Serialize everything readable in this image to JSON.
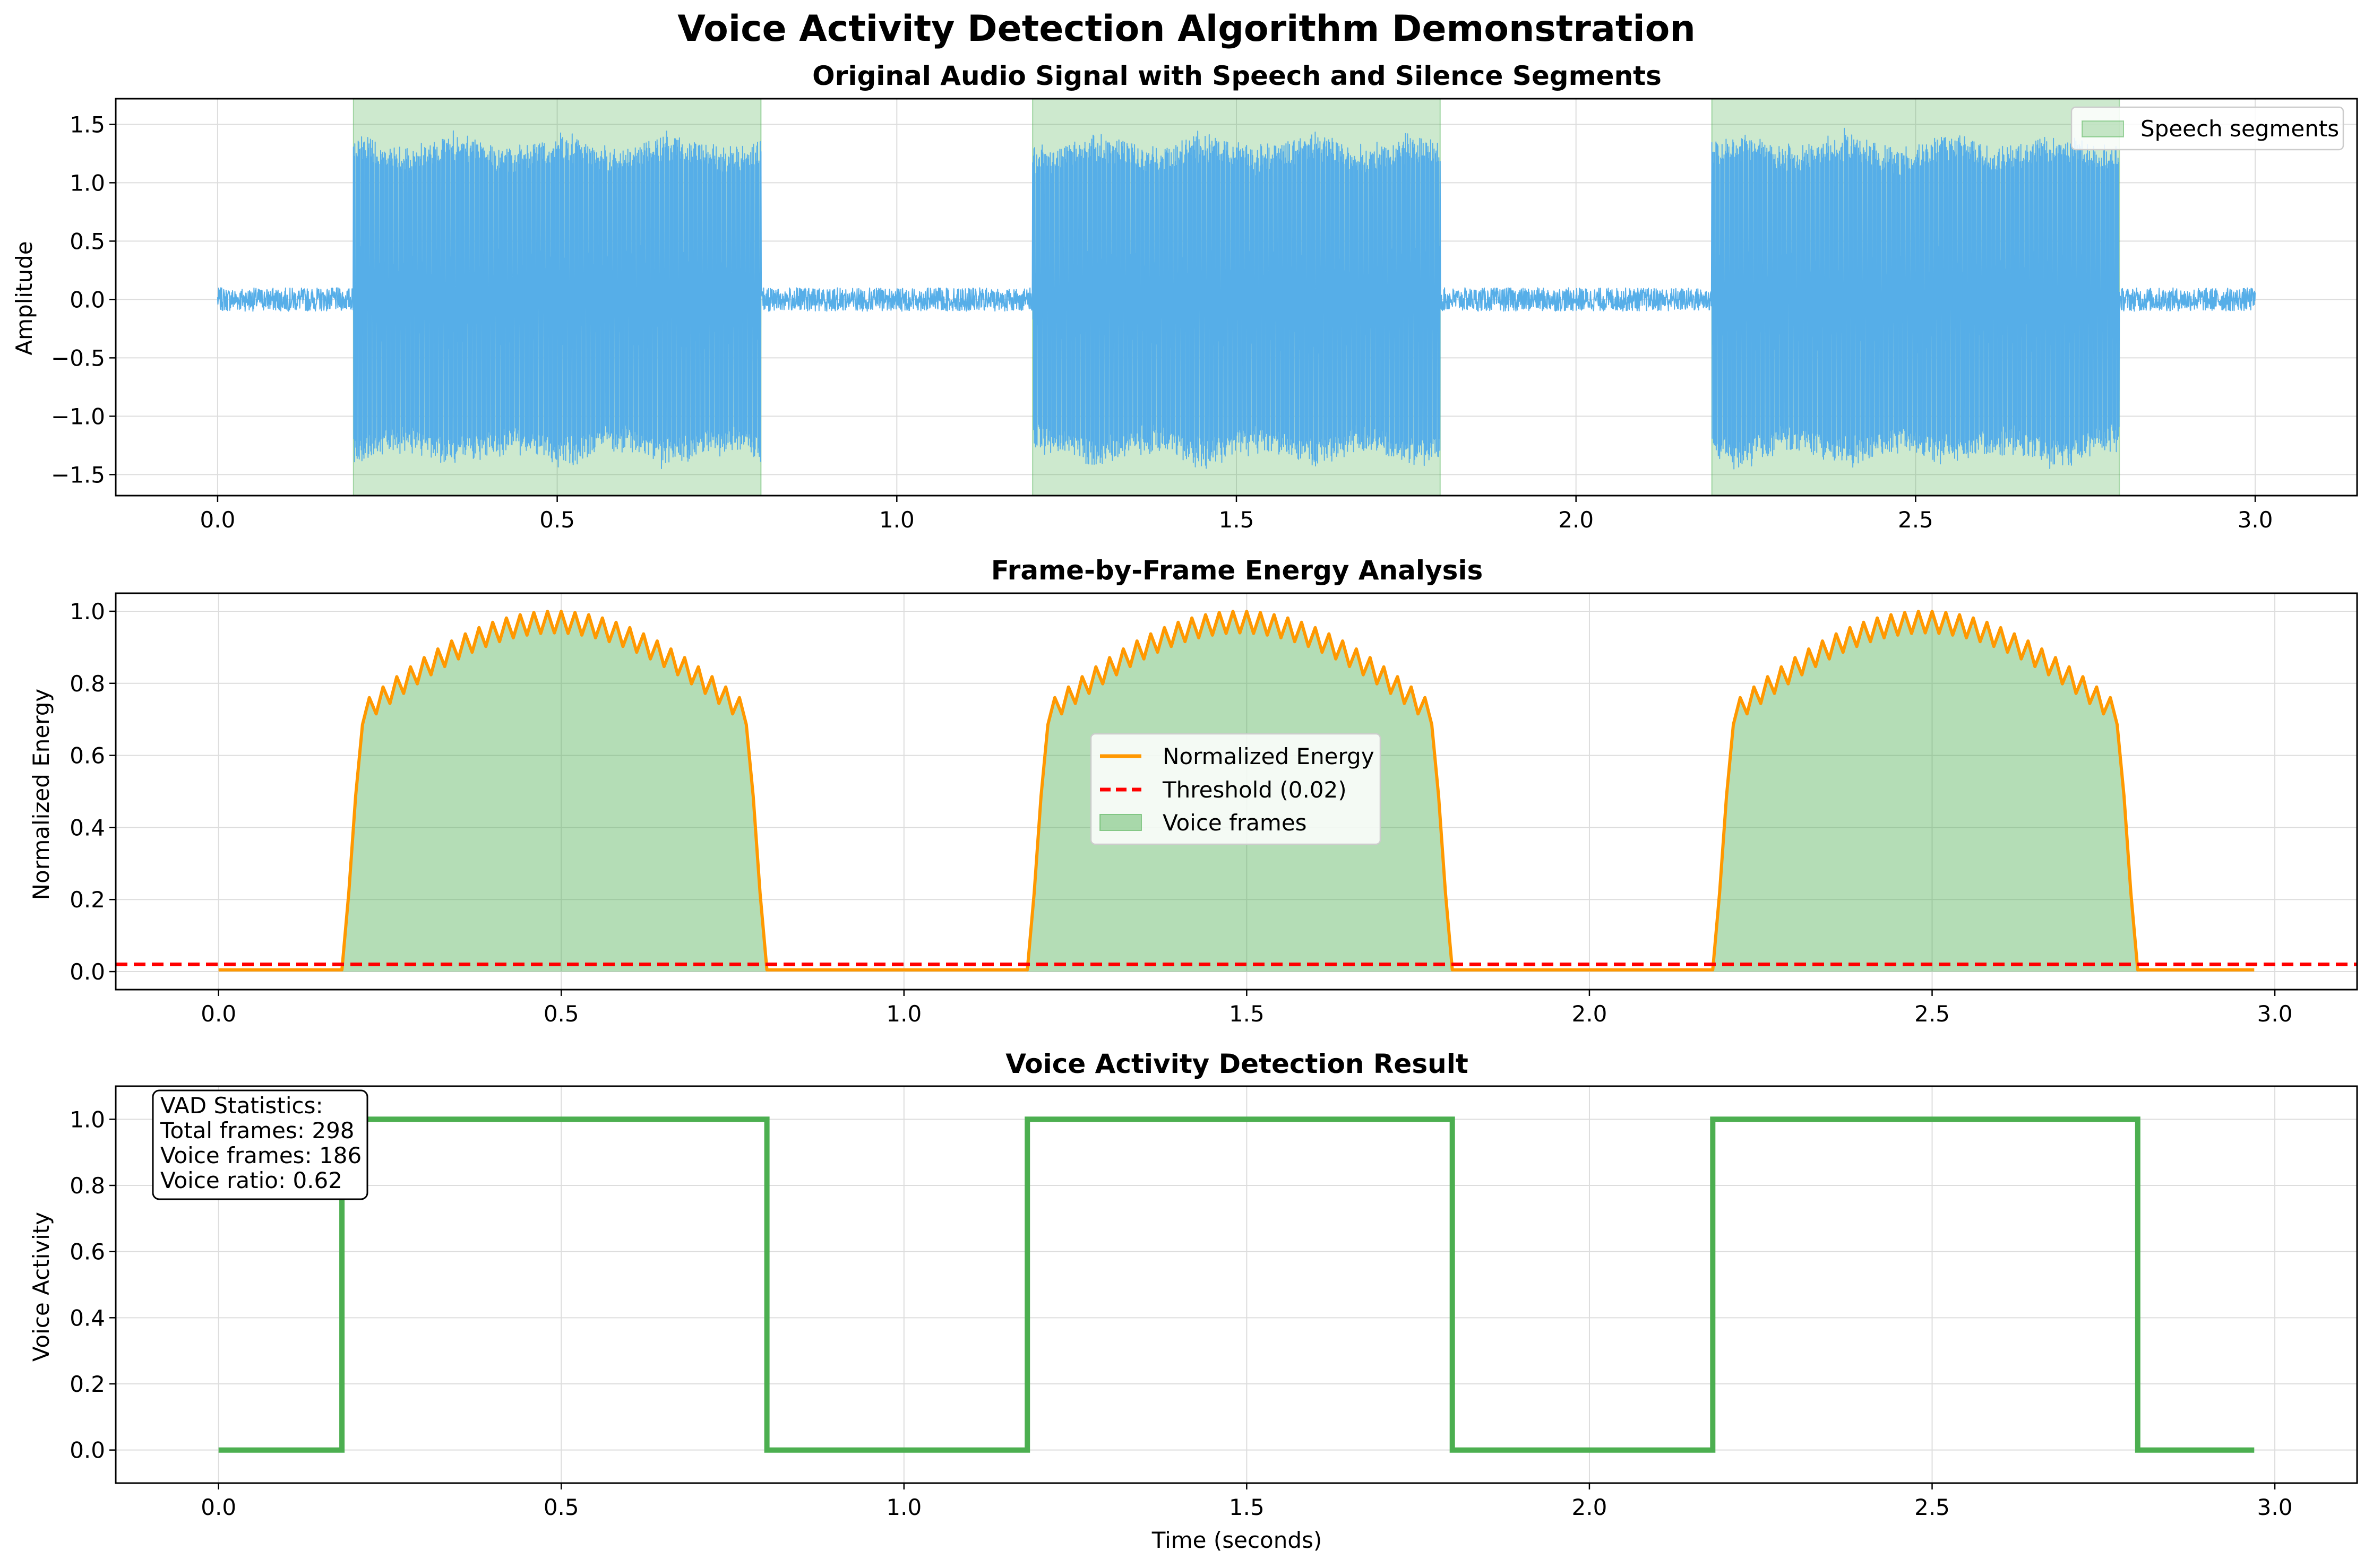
{
  "figure": {
    "title": "Voice Activity Detection Algorithm Demonstration"
  },
  "colors": {
    "signal": "#56aee8",
    "speech_fill": "#4caf50",
    "energy": "#ff9800",
    "threshold": "#ff0000",
    "vad": "#4caf50",
    "grid": "#dddddd"
  },
  "chart_data": [
    {
      "type": "line",
      "title": "Original Audio Signal with Speech and Silence Segments",
      "xlabel": "",
      "ylabel": "Amplitude",
      "xlim": [
        -0.15,
        3.15
      ],
      "ylim": [
        -1.68,
        1.72
      ],
      "xticks": [
        0.0,
        0.5,
        1.0,
        1.5,
        2.0,
        2.5,
        3.0
      ],
      "xtick_labels": [
        "0.0",
        "0.5",
        "1.0",
        "1.5",
        "2.0",
        "2.5",
        "3.0"
      ],
      "yticks": [
        -1.5,
        -1.0,
        -0.5,
        0.0,
        0.5,
        1.0,
        1.5
      ],
      "ytick_labels": [
        "−1.5",
        "−1.0",
        "−0.5",
        "0.0",
        "0.5",
        "1.0",
        "1.5"
      ],
      "grid": true,
      "legend": {
        "position": "upper right",
        "entries": [
          "Speech segments"
        ]
      },
      "speech_segments": [
        [
          0.2,
          0.8
        ],
        [
          1.2,
          1.8
        ],
        [
          2.2,
          2.8
        ]
      ],
      "signal": {
        "duration": 3.0,
        "silence_amplitude": 0.1,
        "speech_amplitude": 1.35,
        "speech_peak": 1.55,
        "description_hidden": null
      }
    },
    {
      "type": "line",
      "title": "Frame-by-Frame Energy Analysis",
      "xlabel": "",
      "ylabel": "Normalized Energy",
      "xlim": [
        -0.15,
        3.12
      ],
      "ylim": [
        -0.05,
        1.05
      ],
      "xticks": [
        0.0,
        0.5,
        1.0,
        1.5,
        2.0,
        2.5,
        3.0
      ],
      "xtick_labels": [
        "0.0",
        "0.5",
        "1.0",
        "1.5",
        "2.0",
        "2.5",
        "3.0"
      ],
      "yticks": [
        0.0,
        0.2,
        0.4,
        0.6,
        0.8,
        1.0
      ],
      "ytick_labels": [
        "0.0",
        "0.2",
        "0.4",
        "0.6",
        "0.8",
        "1.0"
      ],
      "grid": true,
      "legend": {
        "position": "center",
        "entries": [
          "Normalized Energy",
          "Threshold (0.02)",
          "Voice frames"
        ]
      },
      "threshold": 0.02,
      "frames": {
        "start": 0.0,
        "end": 2.97,
        "step": 0.01
      },
      "speech_segments": [
        [
          0.18,
          0.8
        ],
        [
          1.18,
          1.8
        ],
        [
          2.18,
          2.8
        ]
      ],
      "energy_model": {
        "edge_value": 0.7,
        "peak_value": 1.0,
        "ripple": 0.06
      }
    },
    {
      "type": "line",
      "title": "Voice Activity Detection Result",
      "xlabel": "Time (seconds)",
      "ylabel": "Voice Activity",
      "xlim": [
        -0.15,
        3.12
      ],
      "ylim": [
        -0.1,
        1.1
      ],
      "xticks": [
        0.0,
        0.5,
        1.0,
        1.5,
        2.0,
        2.5,
        3.0
      ],
      "xtick_labels": [
        "0.0",
        "0.5",
        "1.0",
        "1.5",
        "2.0",
        "2.5",
        "3.0"
      ],
      "yticks": [
        0.0,
        0.2,
        0.4,
        0.6,
        0.8,
        1.0
      ],
      "ytick_labels": [
        "0.0",
        "0.2",
        "0.4",
        "0.6",
        "0.8",
        "1.0"
      ],
      "grid": true,
      "step_points": [
        [
          0.0,
          0
        ],
        [
          0.18,
          0
        ],
        [
          0.18,
          1
        ],
        [
          0.8,
          1
        ],
        [
          0.8,
          0
        ],
        [
          1.18,
          0
        ],
        [
          1.18,
          1
        ],
        [
          1.8,
          1
        ],
        [
          1.8,
          0
        ],
        [
          2.18,
          0
        ],
        [
          2.18,
          1
        ],
        [
          2.8,
          1
        ],
        [
          2.8,
          0
        ],
        [
          2.97,
          0
        ]
      ],
      "stats": {
        "lines": [
          "VAD Statistics:",
          "Total frames: 298",
          "Voice frames: 186",
          "Voice ratio: 0.62"
        ]
      }
    }
  ]
}
